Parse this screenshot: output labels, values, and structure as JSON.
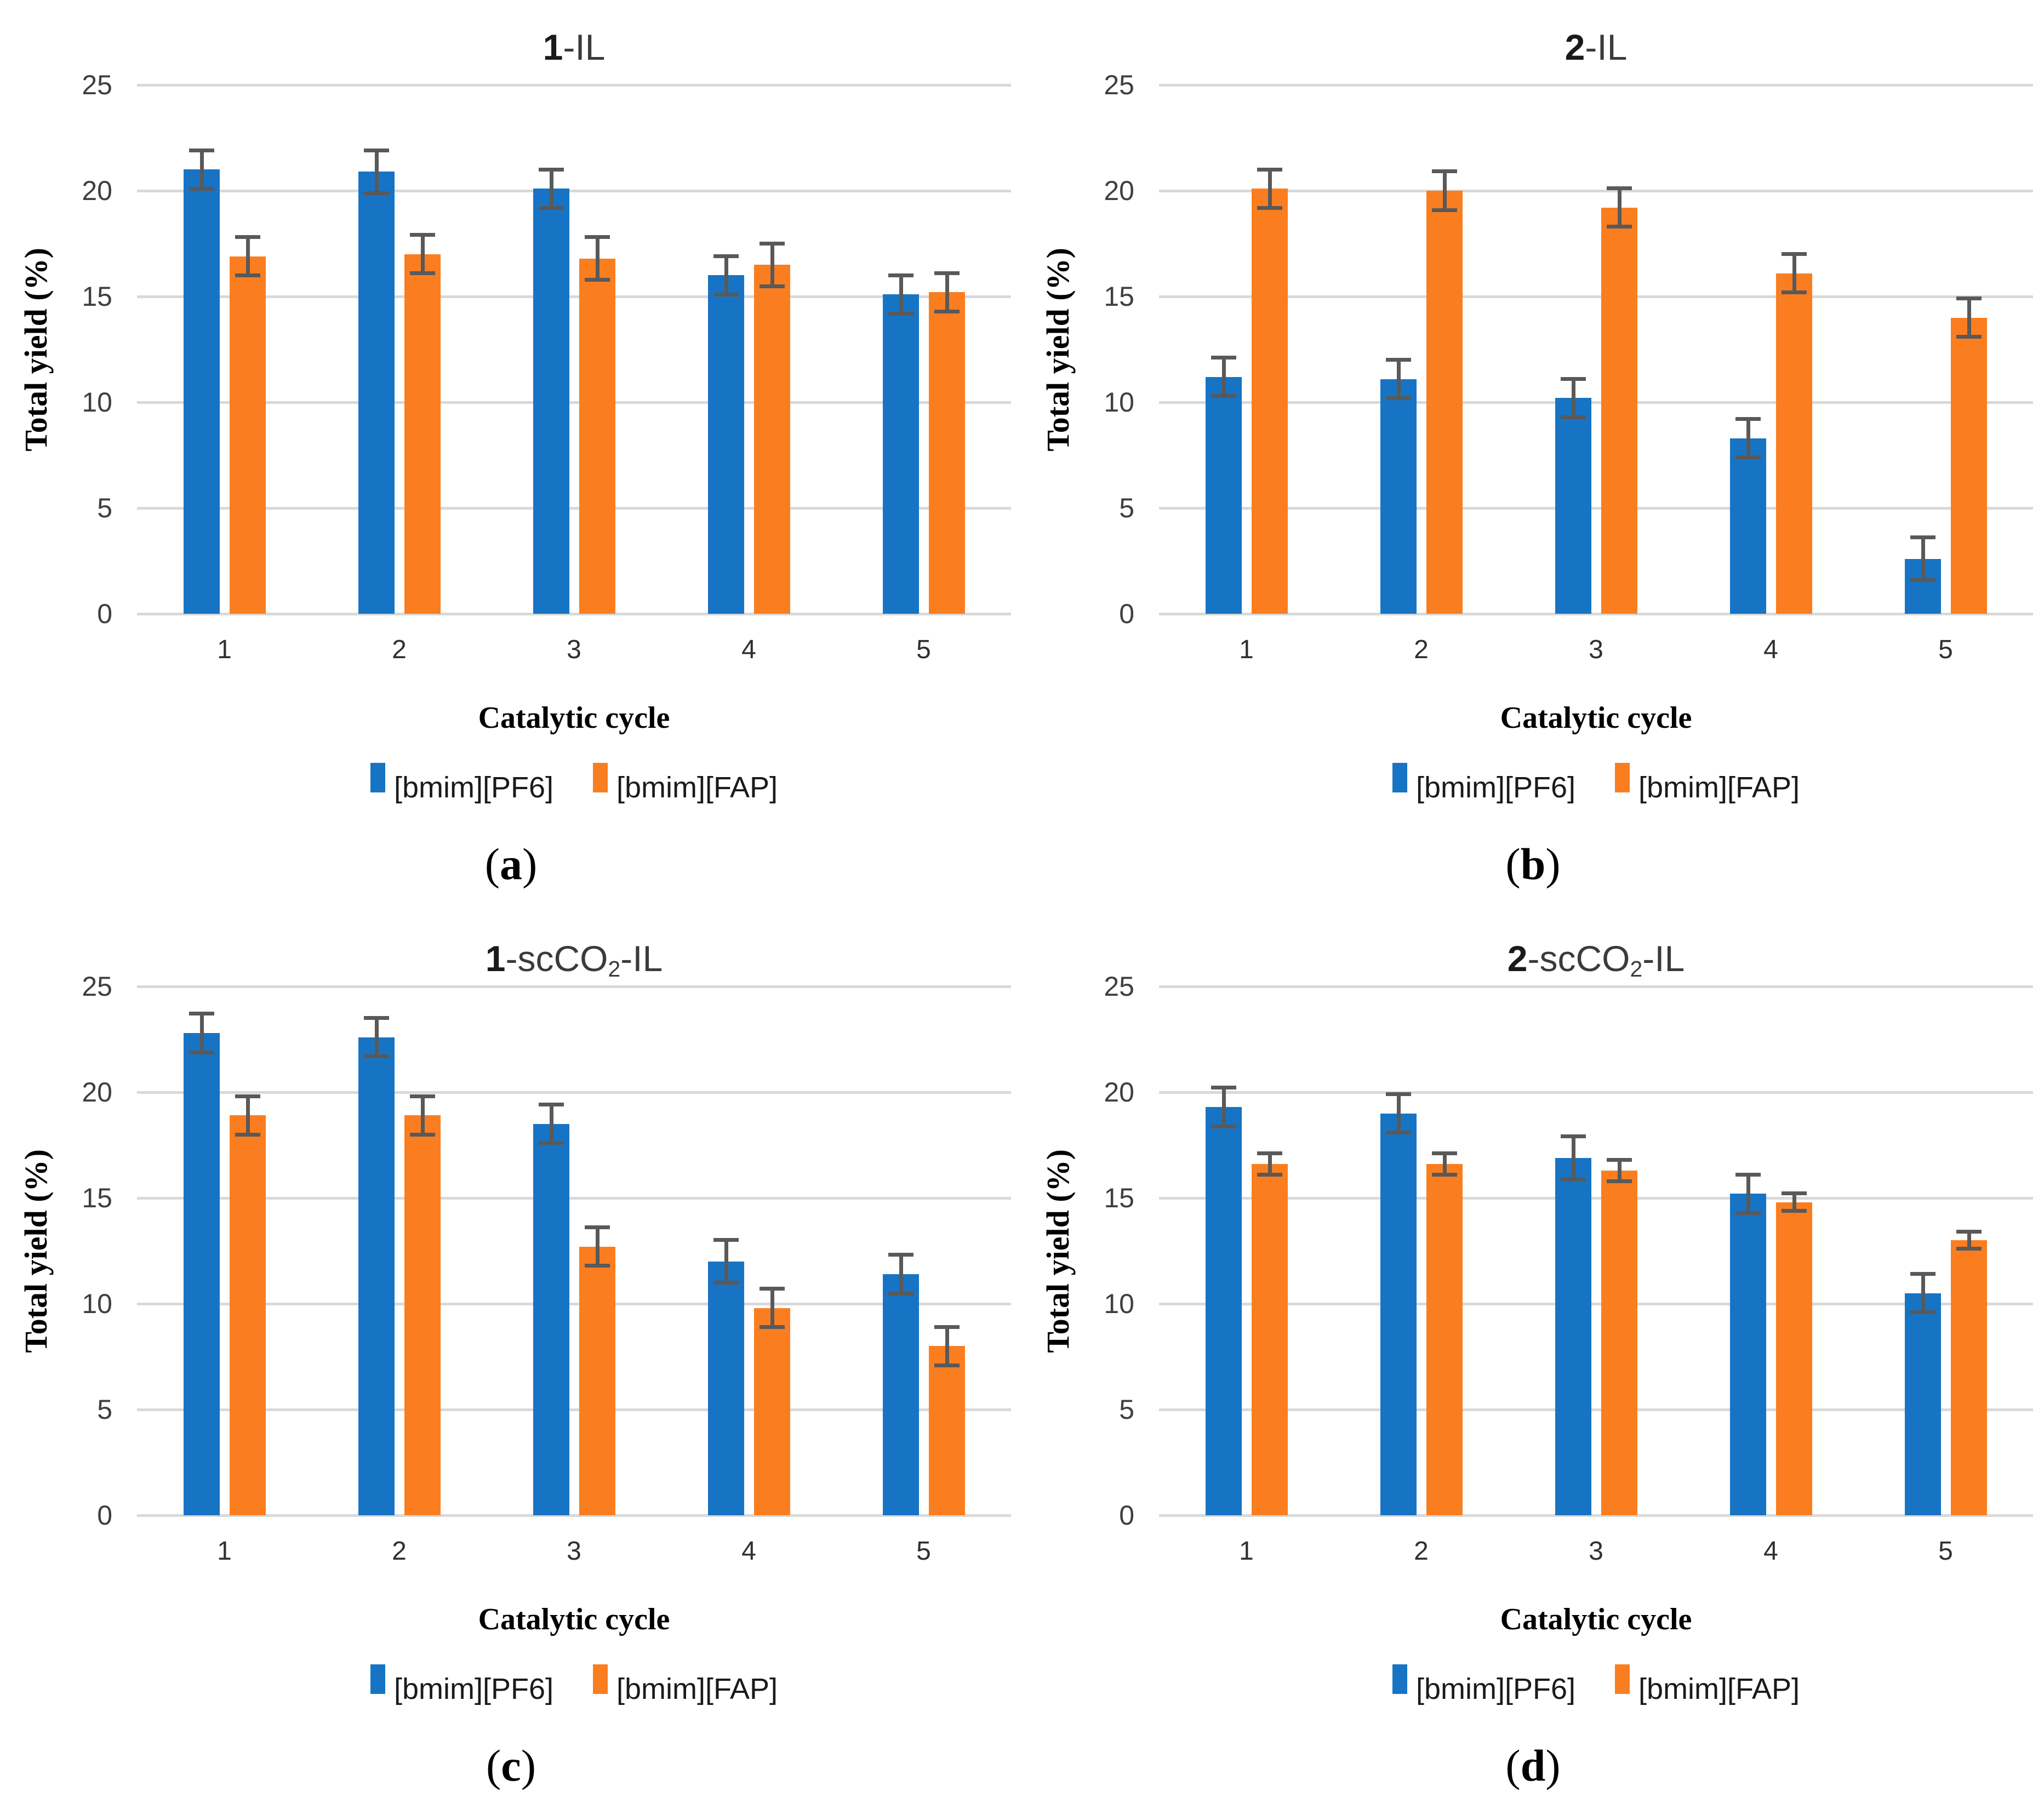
{
  "figure": {
    "yaxis_label": "Total yield (%)",
    "xaxis_label": "Catalytic cycle",
    "caption_open": "(",
    "caption_close": ")",
    "colors": {
      "pf6_blue": "#1774C4",
      "fap_orange": "#FA7E20",
      "error_bar": "#595959",
      "gridline": "#D9D9D9",
      "tick_text": "#3F3F3F",
      "title_text": "#3B3B3B"
    }
  },
  "chart_data": [
    {
      "type": "bar",
      "panel": "a",
      "title_bold": "1",
      "title_main1": "-IL",
      "title_sub": "",
      "title_main2": "",
      "title_plain": "1-IL",
      "xlabel": "Catalytic cycle",
      "ylabel": "Total yield (%)",
      "categories": [
        "1",
        "2",
        "3",
        "4",
        "5"
      ],
      "yticks": [
        0,
        5,
        10,
        15,
        20,
        25
      ],
      "ylim": [
        0,
        25
      ],
      "grid": true,
      "legend_position": "bottom",
      "caption_letter": "a",
      "series": [
        {
          "name": "[bmim][PF6]",
          "color": "#1774C4",
          "values": [
            21.0,
            20.9,
            20.1,
            16.0,
            15.1
          ],
          "errors": [
            1.0,
            1.1,
            1.0,
            1.0,
            1.0
          ]
        },
        {
          "name": "[bmim][FAP]",
          "color": "#FA7E20",
          "values": [
            16.9,
            17.0,
            16.8,
            16.5,
            15.2
          ],
          "errors": [
            1.0,
            1.0,
            1.1,
            1.1,
            1.0
          ]
        }
      ]
    },
    {
      "type": "bar",
      "panel": "b",
      "title_bold": "2",
      "title_main1": "-IL",
      "title_sub": "",
      "title_main2": "",
      "title_plain": "2-IL",
      "xlabel": "Catalytic cycle",
      "ylabel": "Total yield (%)",
      "categories": [
        "1",
        "2",
        "3",
        "4",
        "5"
      ],
      "yticks": [
        0,
        5,
        10,
        15,
        20,
        25
      ],
      "ylim": [
        0,
        25
      ],
      "grid": true,
      "legend_position": "bottom",
      "caption_letter": "b",
      "series": [
        {
          "name": "[bmim][PF6]",
          "color": "#1774C4",
          "values": [
            11.2,
            11.1,
            10.2,
            8.3,
            2.6
          ],
          "errors": [
            1.0,
            1.0,
            1.0,
            1.0,
            1.1
          ]
        },
        {
          "name": "[bmim][FAP]",
          "color": "#FA7E20",
          "values": [
            20.1,
            20.0,
            19.2,
            16.1,
            14.0
          ],
          "errors": [
            1.0,
            1.0,
            1.0,
            1.0,
            1.0
          ]
        }
      ]
    },
    {
      "type": "bar",
      "panel": "c",
      "title_bold": "1",
      "title_main1": "-scCO",
      "title_sub": "2",
      "title_main2": "-IL",
      "title_plain": "1-scCO2-IL",
      "xlabel": "Catalytic cycle",
      "ylabel": "Total yield (%)",
      "categories": [
        "1",
        "2",
        "3",
        "4",
        "5"
      ],
      "yticks": [
        0,
        5,
        10,
        15,
        20,
        25
      ],
      "ylim": [
        0,
        25
      ],
      "grid": true,
      "legend_position": "bottom",
      "caption_letter": "c",
      "series": [
        {
          "name": "[bmim][PF6]",
          "color": "#1774C4",
          "values": [
            22.8,
            22.6,
            18.5,
            12.0,
            11.4
          ],
          "errors": [
            1.0,
            1.0,
            1.0,
            1.1,
            1.0
          ]
        },
        {
          "name": "[bmim][FAP]",
          "color": "#FA7E20",
          "values": [
            18.9,
            18.9,
            12.7,
            9.8,
            8.0
          ],
          "errors": [
            1.0,
            1.0,
            1.0,
            1.0,
            1.0
          ]
        }
      ]
    },
    {
      "type": "bar",
      "panel": "d",
      "title_bold": "2",
      "title_main1": "-scCO",
      "title_sub": "2",
      "title_main2": "-IL",
      "title_plain": "2-scCO2-IL",
      "xlabel": "Catalytic cycle",
      "ylabel": "Total yield (%)",
      "categories": [
        "1",
        "2",
        "3",
        "4",
        "5"
      ],
      "yticks": [
        0,
        5,
        10,
        15,
        20,
        25
      ],
      "ylim": [
        0,
        25
      ],
      "grid": true,
      "legend_position": "bottom",
      "caption_letter": "d",
      "series": [
        {
          "name": "[bmim][PF6]",
          "color": "#1774C4",
          "values": [
            19.3,
            19.0,
            16.9,
            15.2,
            10.5
          ],
          "errors": [
            1.0,
            1.0,
            1.1,
            1.0,
            1.0
          ]
        },
        {
          "name": "[bmim][FAP]",
          "color": "#FA7E20",
          "values": [
            16.6,
            16.6,
            16.3,
            14.8,
            13.0
          ],
          "errors": [
            0.6,
            0.6,
            0.6,
            0.5,
            0.5
          ]
        }
      ]
    }
  ]
}
